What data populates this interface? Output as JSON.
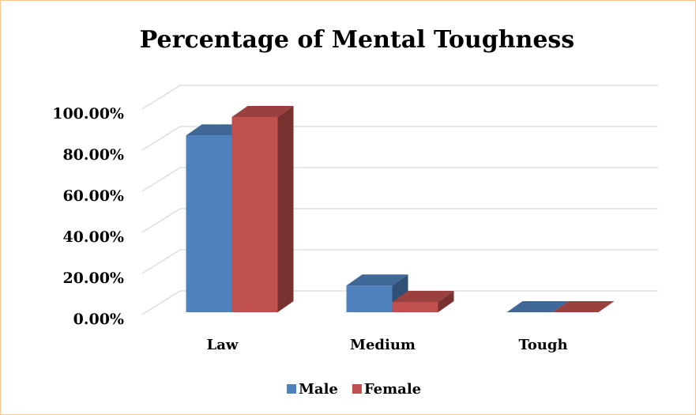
{
  "chart_data": {
    "type": "bar3d",
    "title": "Percentage of Mental Toughness",
    "categories": [
      "Law",
      "Medium",
      "Tough"
    ],
    "series": [
      {
        "name": "Male",
        "color": "#4f81bd",
        "values": [
          86,
          13,
          0
        ]
      },
      {
        "name": "Female",
        "color": "#c0504d",
        "values": [
          95,
          5,
          0
        ]
      }
    ],
    "ylim": [
      0,
      100
    ],
    "yticks": [
      {
        "value": 0,
        "label": "0.00%"
      },
      {
        "value": 20,
        "label": "20.00%"
      },
      {
        "value": 40,
        "label": "40.00%"
      },
      {
        "value": 60,
        "label": "60.00%"
      },
      {
        "value": 80,
        "label": "80.00%"
      },
      {
        "value": 100,
        "label": "100.00%"
      }
    ],
    "grid": true,
    "legend": "bottom"
  }
}
